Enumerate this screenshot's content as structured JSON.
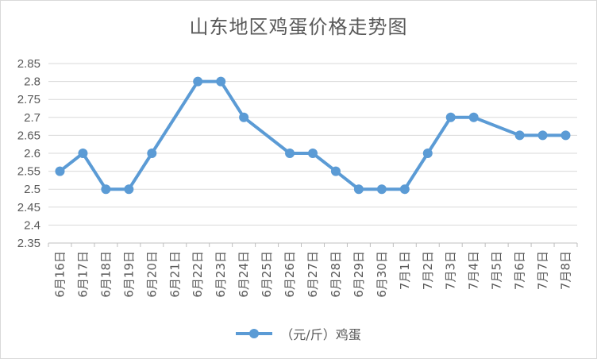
{
  "chart_data": {
    "type": "line",
    "title": "山东地区鸡蛋价格走势图",
    "categories": [
      "6月16日",
      "6月17日",
      "6月18日",
      "6月19日",
      "6月20日",
      "6月21日",
      "6月22日",
      "6月23日",
      "6月24日",
      "6月25日",
      "6月26日",
      "6月27日",
      "6月28日",
      "6月29日",
      "6月30日",
      "7月1日",
      "7月2日",
      "7月3日",
      "7月4日",
      "7月5日",
      "7月6日",
      "7月7日",
      "7月8日"
    ],
    "series": [
      {
        "name": "（元/斤）鸡蛋",
        "color": "#5b9bd5",
        "values": [
          2.55,
          2.6,
          2.5,
          2.5,
          2.6,
          null,
          2.8,
          2.8,
          2.7,
          null,
          2.6,
          2.6,
          2.55,
          2.5,
          2.5,
          2.5,
          2.6,
          2.7,
          2.7,
          null,
          2.65,
          2.65,
          2.65
        ]
      }
    ],
    "yticks": [
      "2.85",
      "2.8",
      "2.75",
      "2.7",
      "2.65",
      "2.6",
      "2.55",
      "2.5",
      "2.45",
      "2.4",
      "2.35"
    ],
    "ylim": [
      2.35,
      2.85
    ],
    "grid": true,
    "legend_position": "bottom",
    "gap_handling": "connect"
  }
}
